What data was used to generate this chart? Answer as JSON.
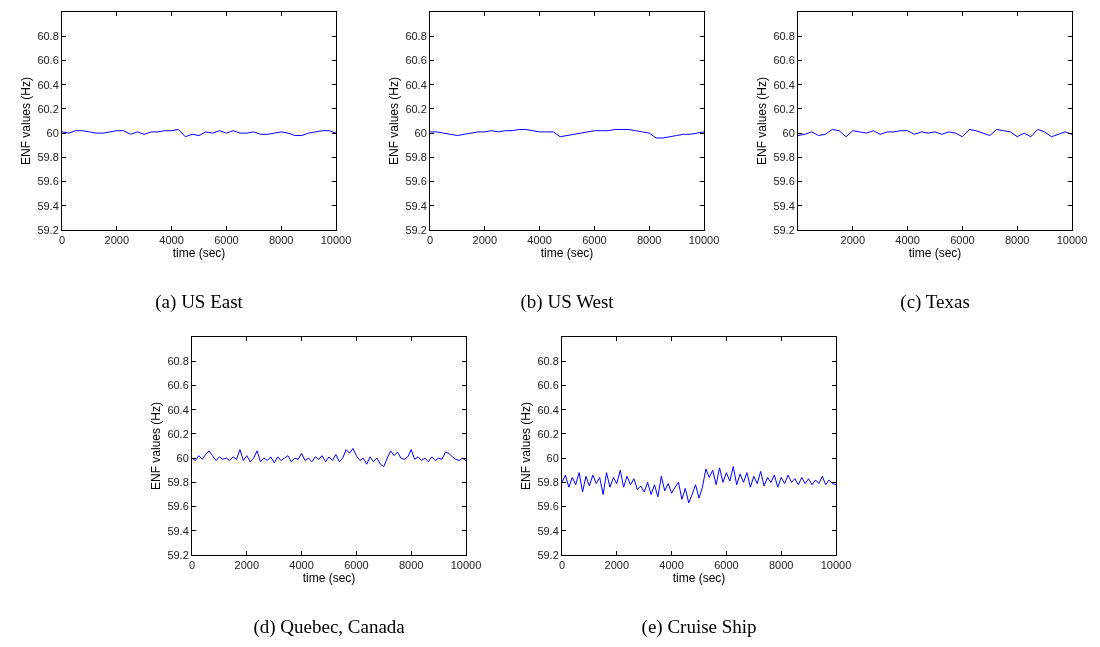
{
  "chart_data": [
    {
      "type": "line",
      "title": "(a) US East",
      "xlabel": "time (sec)",
      "ylabel": "ENF values (Hz)",
      "xlim": [
        0,
        10000
      ],
      "xticks": [
        0,
        2000,
        4000,
        6000,
        8000,
        10000
      ],
      "ylim": [
        59.2,
        61
      ],
      "yticks": [
        59.2,
        59.4,
        59.6,
        59.8,
        60,
        60.2,
        60.4,
        60.6,
        60.8
      ],
      "grid": false,
      "marker": "none",
      "line_style": "solid",
      "x": [
        0,
        250,
        500,
        750,
        1000,
        1250,
        1500,
        1750,
        2000,
        2250,
        2500,
        2750,
        3000,
        3250,
        3500,
        3750,
        4000,
        4250,
        4500,
        4750,
        5000,
        5250,
        5500,
        5750,
        6000,
        6250,
        6500,
        6750,
        7000,
        7250,
        7500,
        7750,
        8000,
        8250,
        8500,
        8750,
        9000,
        9250,
        9500,
        9750,
        10000
      ],
      "series": [
        {
          "color": "#0000ff",
          "values": [
            60.01,
            60.0,
            60.02,
            60.02,
            60.01,
            60.0,
            60.0,
            60.01,
            60.02,
            60.02,
            59.99,
            60.01,
            59.99,
            60.01,
            60.01,
            60.02,
            60.02,
            60.03,
            59.97,
            59.99,
            59.98,
            60.01,
            60.0,
            60.02,
            60.0,
            60.02,
            60.0,
            60.0,
            60.01,
            59.99,
            59.99,
            60.0,
            60.01,
            60.0,
            59.98,
            59.98,
            60.0,
            60.01,
            60.02,
            60.02,
            60.0
          ]
        }
      ]
    },
    {
      "type": "line",
      "title": "(b) US West",
      "xlabel": "time (sec)",
      "ylabel": "ENF values (Hz)",
      "xlim": [
        0,
        10000
      ],
      "xticks": [
        0,
        2000,
        4000,
        6000,
        8000,
        10000
      ],
      "ylim": [
        59.2,
        61
      ],
      "yticks": [
        59.2,
        59.4,
        59.6,
        59.8,
        60,
        60.2,
        60.4,
        60.6,
        60.8
      ],
      "grid": false,
      "marker": "none",
      "line_style": "solid",
      "x": [
        0,
        250,
        500,
        750,
        1000,
        1250,
        1500,
        1750,
        2000,
        2250,
        2500,
        2750,
        3000,
        3250,
        3500,
        3750,
        4000,
        4250,
        4500,
        4750,
        5000,
        5250,
        5500,
        5750,
        6000,
        6250,
        6500,
        6750,
        7000,
        7250,
        7500,
        7750,
        8000,
        8250,
        8500,
        8750,
        9000,
        9250,
        9500,
        9750,
        10000
      ],
      "series": [
        {
          "color": "#0000ff",
          "values": [
            60.01,
            60.01,
            60.0,
            59.99,
            59.98,
            59.99,
            60.0,
            60.01,
            60.01,
            60.02,
            60.01,
            60.02,
            60.02,
            60.03,
            60.03,
            60.02,
            60.01,
            60.01,
            60.01,
            59.97,
            59.98,
            59.99,
            60.0,
            60.01,
            60.02,
            60.02,
            60.02,
            60.03,
            60.03,
            60.03,
            60.02,
            60.01,
            60.0,
            59.96,
            59.96,
            59.97,
            59.98,
            59.99,
            59.99,
            60.0,
            60.01
          ]
        }
      ]
    },
    {
      "type": "line",
      "title": "(c) Texas",
      "xlabel": "time (sec)",
      "ylabel": "ENF values (Hz)",
      "xlim": [
        0,
        10000
      ],
      "xticks": [
        2000,
        4000,
        6000,
        8000,
        10000
      ],
      "ylim": [
        59.2,
        61
      ],
      "yticks": [
        59.2,
        59.4,
        59.6,
        59.8,
        60,
        60.2,
        60.4,
        60.6,
        60.8
      ],
      "grid": false,
      "marker": "none",
      "line_style": "solid",
      "x": [
        0,
        250,
        500,
        750,
        1000,
        1250,
        1500,
        1750,
        2000,
        2250,
        2500,
        2750,
        3000,
        3250,
        3500,
        3750,
        4000,
        4250,
        4500,
        4750,
        5000,
        5250,
        5500,
        5750,
        6000,
        6250,
        6500,
        6750,
        7000,
        7250,
        7500,
        7750,
        8000,
        8250,
        8500,
        8750,
        9000,
        9250,
        9500,
        9750,
        10000
      ],
      "series": [
        {
          "color": "#0000ff",
          "values": [
            59.98,
            59.99,
            60.01,
            59.98,
            59.99,
            60.03,
            60.02,
            59.97,
            60.02,
            60.01,
            60.0,
            60.02,
            59.99,
            60.01,
            60.01,
            60.02,
            60.02,
            59.99,
            60.01,
            60.0,
            60.01,
            59.99,
            60.01,
            60.0,
            59.97,
            60.03,
            60.02,
            60.0,
            59.98,
            60.03,
            60.02,
            60.01,
            59.97,
            60.0,
            59.97,
            60.03,
            60.01,
            59.97,
            59.99,
            60.01,
            59.99
          ]
        }
      ]
    },
    {
      "type": "line",
      "title": "(d) Quebec, Canada",
      "xlabel": "time (sec)",
      "ylabel": "ENF values (Hz)",
      "xlim": [
        0,
        10000
      ],
      "xticks": [
        0,
        2000,
        4000,
        6000,
        8000,
        10000
      ],
      "ylim": [
        59.2,
        61
      ],
      "yticks": [
        59.2,
        59.4,
        59.6,
        59.8,
        60,
        60.2,
        60.4,
        60.6,
        60.8
      ],
      "grid": false,
      "marker": "none",
      "line_style": "solid",
      "x": [
        0,
        125,
        250,
        375,
        500,
        625,
        750,
        875,
        1000,
        1125,
        1250,
        1375,
        1500,
        1625,
        1750,
        1875,
        2000,
        2125,
        2250,
        2375,
        2500,
        2625,
        2750,
        2875,
        3000,
        3125,
        3250,
        3375,
        3500,
        3625,
        3750,
        3875,
        4000,
        4125,
        4250,
        4375,
        4500,
        4625,
        4750,
        4875,
        5000,
        5125,
        5250,
        5375,
        5500,
        5625,
        5750,
        5875,
        6000,
        6125,
        6250,
        6375,
        6500,
        6625,
        6750,
        6875,
        7000,
        7125,
        7250,
        7375,
        7500,
        7625,
        7750,
        7875,
        8000,
        8125,
        8250,
        8375,
        8500,
        8625,
        8750,
        8875,
        9000,
        9125,
        9250,
        9375,
        9500,
        9625,
        9750,
        9875,
        10000
      ],
      "series": [
        {
          "color": "#0000ff",
          "values": [
            60.0,
            59.98,
            60.02,
            59.99,
            60.03,
            60.06,
            60.02,
            59.98,
            60.01,
            59.99,
            60.0,
            59.98,
            60.01,
            59.99,
            60.07,
            59.98,
            60.02,
            59.97,
            60.0,
            60.06,
            59.97,
            60.0,
            59.98,
            60.01,
            59.96,
            60.01,
            59.98,
            60.0,
            60.02,
            59.97,
            60.0,
            59.99,
            60.04,
            59.98,
            60.0,
            59.97,
            60.01,
            59.99,
            60.02,
            59.97,
            60.01,
            59.98,
            60.03,
            59.97,
            60.0,
            60.07,
            60.04,
            60.08,
            60.02,
            59.98,
            60.0,
            59.95,
            60.01,
            59.97,
            60.0,
            59.95,
            59.93,
            60.0,
            60.06,
            60.02,
            60.05,
            60.0,
            59.99,
            60.01,
            60.07,
            59.99,
            60.01,
            59.98,
            60.0,
            59.97,
            60.01,
            59.98,
            60.0,
            59.99,
            60.05,
            60.04,
            60.01,
            59.99,
            59.98,
            60.0,
            59.98
          ]
        }
      ]
    },
    {
      "type": "line",
      "title": "(e) Cruise Ship",
      "xlabel": "time (sec)",
      "ylabel": "ENF values (Hz)",
      "xlim": [
        0,
        10000
      ],
      "xticks": [
        0,
        2000,
        4000,
        6000,
        8000,
        10000
      ],
      "ylim": [
        59.2,
        61
      ],
      "yticks": [
        59.2,
        59.4,
        59.6,
        59.8,
        60,
        60.2,
        60.4,
        60.6,
        60.8
      ],
      "grid": false,
      "marker": "none",
      "line_style": "solid",
      "x": [
        0,
        125,
        250,
        375,
        500,
        625,
        750,
        875,
        1000,
        1125,
        1250,
        1375,
        1500,
        1625,
        1750,
        1875,
        2000,
        2125,
        2250,
        2375,
        2500,
        2625,
        2750,
        2875,
        3000,
        3125,
        3250,
        3375,
        3500,
        3625,
        3750,
        3875,
        4000,
        4125,
        4250,
        4375,
        4500,
        4625,
        4750,
        4875,
        5000,
        5125,
        5250,
        5375,
        5500,
        5625,
        5750,
        5875,
        6000,
        6125,
        6250,
        6375,
        6500,
        6625,
        6750,
        6875,
        7000,
        7125,
        7250,
        7375,
        7500,
        7625,
        7750,
        7875,
        8000,
        8125,
        8250,
        8375,
        8500,
        8625,
        8750,
        8875,
        9000,
        9125,
        9250,
        9375,
        9500,
        9625,
        9750,
        9875,
        10000
      ],
      "series": [
        {
          "color": "#0000ff",
          "values": [
            59.8,
            59.86,
            59.76,
            59.84,
            59.78,
            59.88,
            59.72,
            59.85,
            59.77,
            59.86,
            59.79,
            59.84,
            59.7,
            59.88,
            59.76,
            59.84,
            59.79,
            59.9,
            59.76,
            59.85,
            59.78,
            59.83,
            59.74,
            59.77,
            59.72,
            59.8,
            59.7,
            59.78,
            59.68,
            59.85,
            59.73,
            59.79,
            59.71,
            59.76,
            59.8,
            59.66,
            59.75,
            59.63,
            59.7,
            59.78,
            59.67,
            59.76,
            59.91,
            59.84,
            59.9,
            59.78,
            59.92,
            59.8,
            59.88,
            59.81,
            59.93,
            59.78,
            59.87,
            59.8,
            59.88,
            59.76,
            59.85,
            59.79,
            59.89,
            59.77,
            59.84,
            59.8,
            59.86,
            59.76,
            59.84,
            59.79,
            59.86,
            59.8,
            59.83,
            59.78,
            59.84,
            59.79,
            59.83,
            59.78,
            59.82,
            59.79,
            59.85,
            59.78,
            59.82,
            59.79,
            59.78
          ]
        }
      ]
    }
  ]
}
